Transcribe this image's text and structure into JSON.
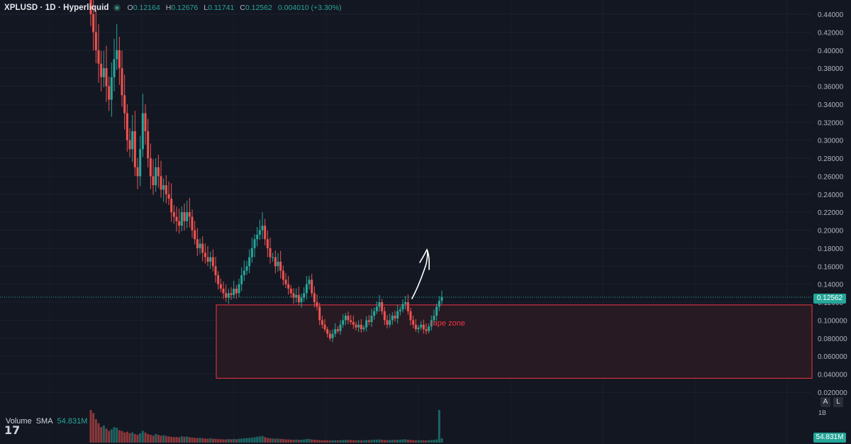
{
  "header": {
    "symbol": "XPLUSD · 1D · Hyperliquid",
    "ohlc": {
      "o_label": "O",
      "o": "0.12164",
      "h_label": "H",
      "h": "0.12676",
      "l_label": "L",
      "l": "0.11741",
      "c_label": "C",
      "c": "0.12562",
      "change": "0.004010 (+3.30%)"
    }
  },
  "price_axis": {
    "ticks": [
      "0.44000",
      "0.42000",
      "0.40000",
      "0.38000",
      "0.36000",
      "0.34000",
      "0.32000",
      "0.30000",
      "0.28000",
      "0.26000",
      "0.24000",
      "0.22000",
      "0.20000",
      "0.18000",
      "0.16000",
      "0.14000",
      "0.12000",
      "0.100000",
      "0.080000",
      "0.060000",
      "0.040000",
      "0.020000"
    ],
    "current_price": "0.12562",
    "auto_btn": "A",
    "log_btn": "L"
  },
  "volume": {
    "label": "Volume",
    "sma_label": "SMA",
    "value": "54.831M",
    "axis_label": "1B",
    "tag": "54.831M"
  },
  "annotation": {
    "zone_label": "rape zone"
  },
  "logo": "17",
  "colors": {
    "background": "#131722",
    "up": "#26a69a",
    "down": "#ef5350",
    "zone_fill": "#2b1b22",
    "zone_border": "#f23645"
  },
  "chart_data": {
    "type": "candlestick",
    "y_range": [
      0.02,
      0.44
    ],
    "zone": {
      "top": 0.117,
      "bottom": 0.0355
    },
    "closes": [
      0.44,
      0.42,
      0.4,
      0.385,
      0.37,
      0.38,
      0.36,
      0.345,
      0.37,
      0.39,
      0.4,
      0.38,
      0.35,
      0.33,
      0.3,
      0.29,
      0.31,
      0.27,
      0.26,
      0.29,
      0.33,
      0.31,
      0.28,
      0.26,
      0.25,
      0.27,
      0.26,
      0.245,
      0.25,
      0.24,
      0.235,
      0.22,
      0.215,
      0.21,
      0.205,
      0.22,
      0.21,
      0.22,
      0.215,
      0.2,
      0.19,
      0.18,
      0.185,
      0.175,
      0.17,
      0.165,
      0.17,
      0.16,
      0.15,
      0.14,
      0.135,
      0.13,
      0.125,
      0.13,
      0.128,
      0.135,
      0.13,
      0.14,
      0.15,
      0.155,
      0.16,
      0.17,
      0.18,
      0.19,
      0.195,
      0.2,
      0.205,
      0.19,
      0.18,
      0.17,
      0.17,
      0.16,
      0.165,
      0.155,
      0.145,
      0.14,
      0.135,
      0.13,
      0.125,
      0.128,
      0.12,
      0.125,
      0.13,
      0.14,
      0.145,
      0.13,
      0.12,
      0.115,
      0.1,
      0.095,
      0.09,
      0.085,
      0.08,
      0.085,
      0.09,
      0.088,
      0.095,
      0.1,
      0.105,
      0.1,
      0.098,
      0.095,
      0.092,
      0.095,
      0.09,
      0.092,
      0.1,
      0.098,
      0.105,
      0.11,
      0.115,
      0.12,
      0.11,
      0.1,
      0.095,
      0.1,
      0.105,
      0.102,
      0.11,
      0.112,
      0.118,
      0.12,
      0.11,
      0.1,
      0.095,
      0.09,
      0.092,
      0.095,
      0.09,
      0.088,
      0.093,
      0.1,
      0.105,
      0.115,
      0.1215,
      0.1256
    ],
    "volumes_m": [
      420,
      380,
      300,
      250,
      200,
      220,
      180,
      150,
      170,
      200,
      190,
      160,
      150,
      130,
      140,
      120,
      130,
      110,
      100,
      120,
      150,
      130,
      110,
      100,
      90,
      110,
      100,
      90,
      95,
      85,
      80,
      75,
      70,
      72,
      68,
      80,
      75,
      78,
      70,
      65,
      60,
      58,
      62,
      55,
      52,
      50,
      55,
      50,
      48,
      45,
      44,
      42,
      40,
      45,
      43,
      46,
      44,
      48,
      52,
      55,
      58,
      60,
      65,
      70,
      75,
      80,
      85,
      70,
      60,
      55,
      52,
      50,
      52,
      48,
      45,
      42,
      40,
      38,
      36,
      38,
      35,
      37,
      40,
      45,
      48,
      40,
      36,
      34,
      32,
      30,
      30,
      28,
      27,
      29,
      30,
      29,
      31,
      33,
      35,
      33,
      32,
      31,
      30,
      31,
      29,
      30,
      33,
      32,
      35,
      37,
      38,
      40,
      36,
      33,
      31,
      33,
      35,
      34,
      37,
      38,
      40,
      42,
      37,
      33,
      31,
      29,
      30,
      31,
      29,
      28,
      30,
      33,
      35,
      40,
      420,
      55
    ]
  }
}
